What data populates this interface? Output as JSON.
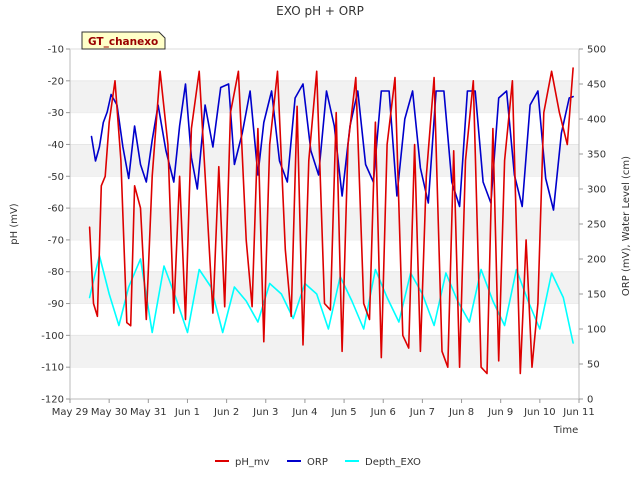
{
  "chart_data": {
    "type": "line",
    "title": "EXO pH + ORP",
    "site_label": "GT_chanexo",
    "xlabel": "Time",
    "ylabel_left": "pH (mV)",
    "ylabel_right": "ORP (mV), Water Level (cm)",
    "x_range_days": [
      0,
      13
    ],
    "x_ticks": [
      {
        "day": 0,
        "label": "May 29"
      },
      {
        "day": 1,
        "label": "May 30"
      },
      {
        "day": 2,
        "label": "May 31"
      },
      {
        "day": 3,
        "label": "Jun 1"
      },
      {
        "day": 4,
        "label": "Jun 2"
      },
      {
        "day": 5,
        "label": "Jun 3"
      },
      {
        "day": 6,
        "label": "Jun 4"
      },
      {
        "day": 7,
        "label": "Jun 5"
      },
      {
        "day": 8,
        "label": "Jun 6"
      },
      {
        "day": 9,
        "label": "Jun 7"
      },
      {
        "day": 10,
        "label": "Jun 8"
      },
      {
        "day": 11,
        "label": "Jun 9"
      },
      {
        "day": 12,
        "label": "Jun 10"
      },
      {
        "day": 13,
        "label": "Jun 11"
      }
    ],
    "ylim_left": [
      -120,
      -10
    ],
    "yticks_left": [
      -120,
      -110,
      -100,
      -90,
      -80,
      -70,
      -60,
      -50,
      -40,
      -30,
      -20,
      -10
    ],
    "ylim_right": [
      0,
      500
    ],
    "yticks_right": [
      0,
      50,
      100,
      150,
      200,
      250,
      300,
      350,
      400,
      450,
      500
    ],
    "grid_bands": true,
    "legend_position": "bottom-center",
    "series": [
      {
        "name": "pH_mv",
        "axis": "left",
        "color": "#dd0000",
        "x": [
          0.5,
          0.6,
          0.7,
          0.8,
          0.9,
          1.0,
          1.15,
          1.3,
          1.45,
          1.55,
          1.65,
          1.8,
          1.95,
          2.1,
          2.3,
          2.5,
          2.65,
          2.8,
          2.95,
          3.1,
          3.3,
          3.5,
          3.65,
          3.8,
          3.95,
          4.1,
          4.3,
          4.5,
          4.65,
          4.8,
          4.95,
          5.1,
          5.3,
          5.5,
          5.65,
          5.8,
          5.95,
          6.1,
          6.3,
          6.5,
          6.65,
          6.8,
          6.95,
          7.1,
          7.3,
          7.5,
          7.65,
          7.8,
          7.95,
          8.1,
          8.3,
          8.5,
          8.65,
          8.8,
          8.95,
          9.1,
          9.3,
          9.5,
          9.65,
          9.8,
          9.95,
          10.1,
          10.3,
          10.5,
          10.65,
          10.8,
          10.95,
          11.1,
          11.3,
          11.5,
          11.65,
          11.8,
          11.95,
          12.1,
          12.3,
          12.5,
          12.7,
          12.85
        ],
        "values": [
          -66,
          -90,
          -94,
          -53,
          -50,
          -33,
          -20,
          -45,
          -96,
          -97,
          -53,
          -60,
          -95,
          -50,
          -17,
          -40,
          -93,
          -50,
          -95,
          -35,
          -17,
          -60,
          -93,
          -47,
          -91,
          -30,
          -17,
          -70,
          -91,
          -35,
          -102,
          -40,
          -17,
          -73,
          -94,
          -28,
          -103,
          -45,
          -17,
          -90,
          -92,
          -30,
          -105,
          -40,
          -19,
          -90,
          -95,
          -33,
          -107,
          -40,
          -19,
          -100,
          -104,
          -40,
          -105,
          -50,
          -19,
          -105,
          -110,
          -42,
          -110,
          -45,
          -20,
          -110,
          -112,
          -35,
          -108,
          -45,
          -20,
          -112,
          -70,
          -110,
          -90,
          -30,
          -17,
          -30,
          -40,
          -16
        ]
      },
      {
        "name": "ORP",
        "axis": "right",
        "color": "#0000cc",
        "x": [
          0.55,
          0.65,
          0.75,
          0.85,
          0.95,
          1.05,
          1.2,
          1.35,
          1.5,
          1.65,
          1.8,
          1.95,
          2.1,
          2.25,
          2.45,
          2.65,
          2.8,
          2.95,
          3.1,
          3.25,
          3.45,
          3.65,
          3.85,
          4.05,
          4.2,
          4.4,
          4.6,
          4.8,
          4.95,
          5.15,
          5.35,
          5.55,
          5.75,
          5.95,
          6.15,
          6.35,
          6.55,
          6.75,
          6.95,
          7.15,
          7.35,
          7.55,
          7.75,
          7.95,
          8.15,
          8.35,
          8.55,
          8.75,
          8.95,
          9.15,
          9.35,
          9.55,
          9.75,
          9.95,
          10.15,
          10.35,
          10.55,
          10.75,
          10.95,
          11.15,
          11.35,
          11.55,
          11.75,
          11.95,
          12.15,
          12.35,
          12.55,
          12.75,
          12.85
        ],
        "values": [
          375,
          340,
          360,
          395,
          410,
          435,
          420,
          360,
          315,
          390,
          335,
          310,
          370,
          420,
          355,
          310,
          390,
          450,
          345,
          300,
          420,
          360,
          445,
          450,
          335,
          380,
          440,
          320,
          395,
          440,
          340,
          310,
          430,
          450,
          355,
          320,
          440,
          390,
          290,
          390,
          440,
          335,
          310,
          440,
          440,
          290,
          400,
          440,
          330,
          280,
          440,
          440,
          310,
          275,
          440,
          440,
          310,
          280,
          430,
          440,
          320,
          275,
          420,
          440,
          315,
          270,
          380,
          430,
          432
        ]
      },
      {
        "name": "Depth_EXO",
        "axis": "right",
        "color": "#00ffff",
        "x": [
          0.5,
          0.75,
          1.0,
          1.25,
          1.5,
          1.8,
          2.1,
          2.4,
          2.7,
          3.0,
          3.3,
          3.6,
          3.9,
          4.2,
          4.5,
          4.8,
          5.1,
          5.4,
          5.7,
          6.0,
          6.3,
          6.6,
          6.9,
          7.2,
          7.5,
          7.8,
          8.1,
          8.4,
          8.7,
          9.0,
          9.3,
          9.6,
          9.9,
          10.2,
          10.5,
          10.8,
          11.1,
          11.4,
          11.7,
          12.0,
          12.3,
          12.6,
          12.85
        ],
        "values": [
          145,
          205,
          150,
          105,
          160,
          200,
          95,
          190,
          145,
          95,
          185,
          160,
          95,
          160,
          140,
          110,
          165,
          150,
          115,
          165,
          150,
          100,
          175,
          140,
          100,
          185,
          145,
          110,
          180,
          150,
          105,
          180,
          140,
          110,
          185,
          140,
          105,
          185,
          140,
          100,
          180,
          145,
          80
        ]
      }
    ]
  }
}
